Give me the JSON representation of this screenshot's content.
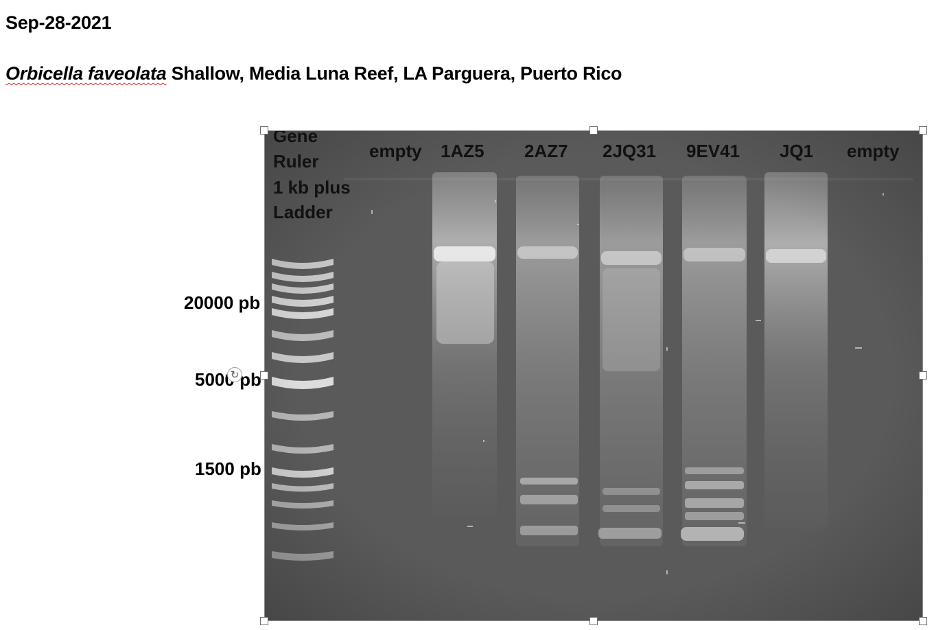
{
  "document": {
    "date": "Sep-28-2021",
    "title_species": "Orbicella faveolata",
    "title_rest": " Shallow, Media Luna Reef, LA Parguera, Puerto Rico"
  },
  "ladder": {
    "name_lines": [
      "Gene",
      "Ruler",
      "1 kb plus",
      "Ladder"
    ],
    "size_labels": [
      "20000 pb",
      "5000 pb",
      "1500 pb"
    ]
  },
  "lanes": [
    "empty",
    "1AZ5",
    "2AZ7",
    "2JQ31",
    "9EV41",
    "JQ1",
    "empty"
  ],
  "colors": {
    "gel_background": "#5b5b5b",
    "spellcheck_underline": "#d42a2a",
    "selection_handle": "#ffffff"
  },
  "icons": [
    "rotate-handle-icon"
  ]
}
